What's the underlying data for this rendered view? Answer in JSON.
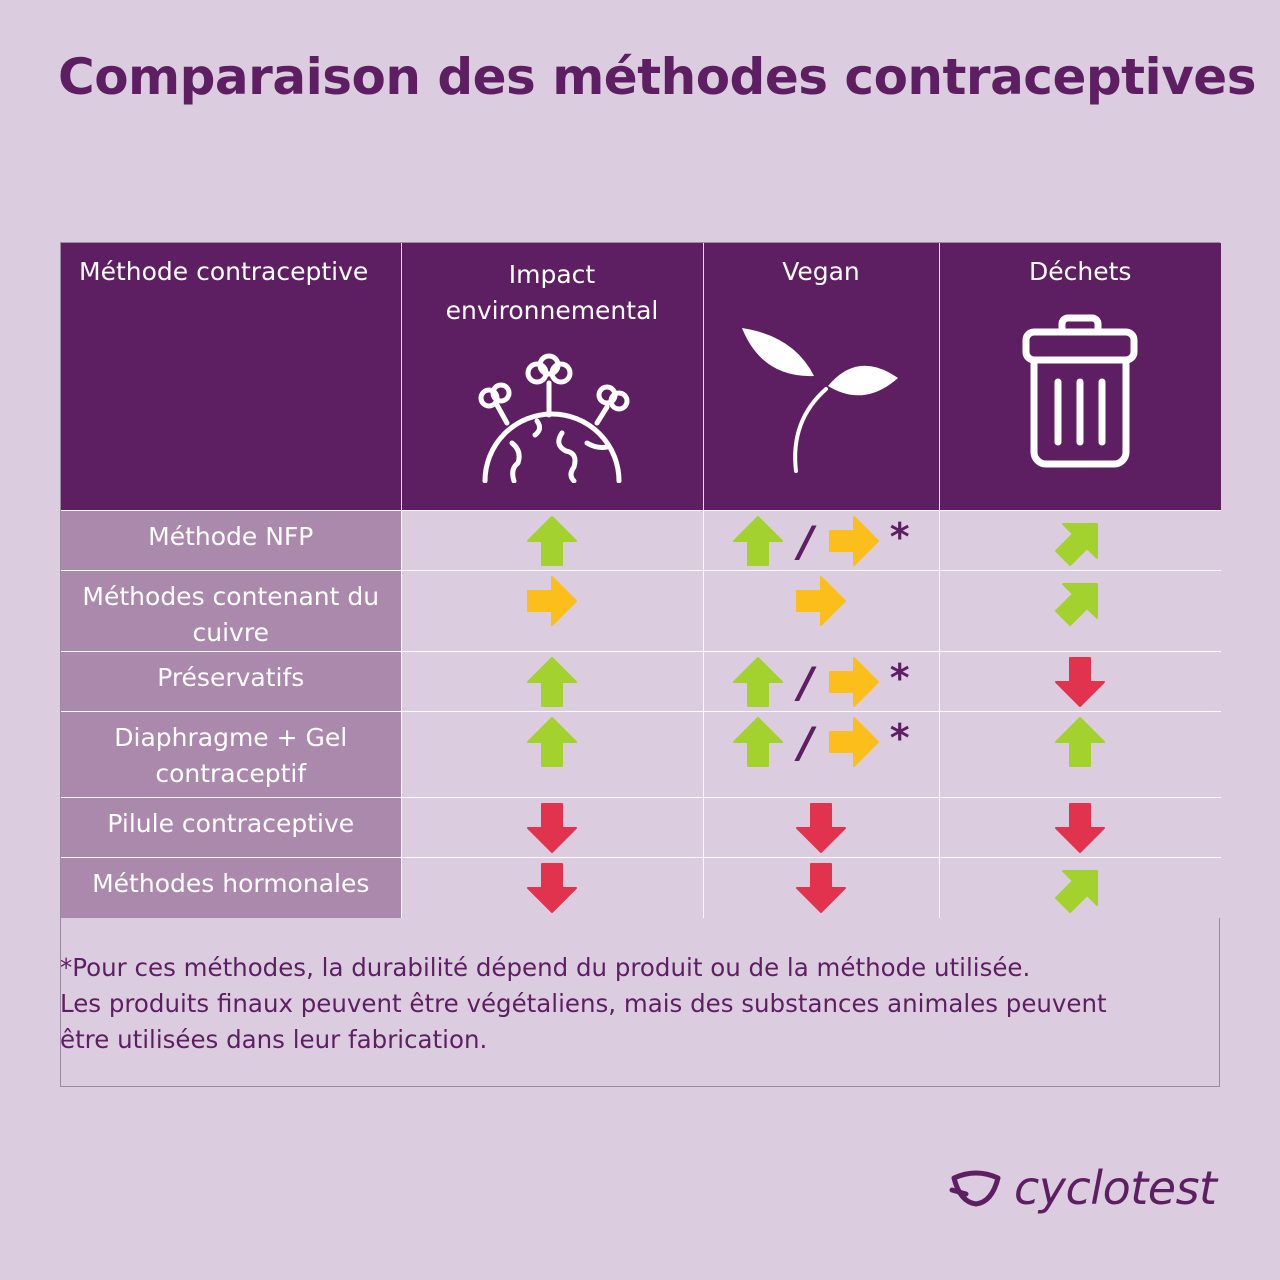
{
  "title": "Comparaison des méthodes contraceptives",
  "table": {
    "headers": [
      {
        "label": "Méthode contraceptive",
        "icon": ""
      },
      {
        "label": "Impact environnemental",
        "icon": "earth-trees-icon"
      },
      {
        "label": "Vegan",
        "icon": "sprout-icon"
      },
      {
        "label": "Déchets",
        "icon": "trash-can-icon"
      }
    ],
    "rows": [
      {
        "method": "Méthode NFP",
        "impact": "up",
        "vegan": "up/right*",
        "waste": "up-right"
      },
      {
        "method": "Méthodes contenant du cuivre",
        "impact": "right",
        "vegan": "right",
        "waste": "up-right"
      },
      {
        "method": "Préservatifs",
        "impact": "up",
        "vegan": "up/right*",
        "waste": "down"
      },
      {
        "method": "Diaphragme + Gel contraceptif",
        "impact": "up",
        "vegan": "up/right*",
        "waste": "up"
      },
      {
        "method": "Pilule contraceptive",
        "impact": "down",
        "vegan": "down",
        "waste": "down"
      },
      {
        "method": "Méthodes hormonales",
        "impact": "down",
        "vegan": "down",
        "waste": "up-right"
      }
    ],
    "slash": "/",
    "star": "*"
  },
  "footnote": {
    "line1": "*Pour ces méthodes, la durabilité dépend du produit ou de la méthode utilisée.",
    "line2": "Les produits finaux peuvent être végétaliens, mais des substances animales peuvent",
    "line3": "être utilisées dans leur fabrication."
  },
  "logo": {
    "text": "cyclotest",
    "icon": "cyclotest-logo-icon"
  },
  "colors": {
    "green": "#a3d12e",
    "yellow": "#fbbe1b",
    "red": "#e2334e",
    "purple": "#5e1f62",
    "lavender": "#ab89ad",
    "background": "#dbcddf"
  }
}
